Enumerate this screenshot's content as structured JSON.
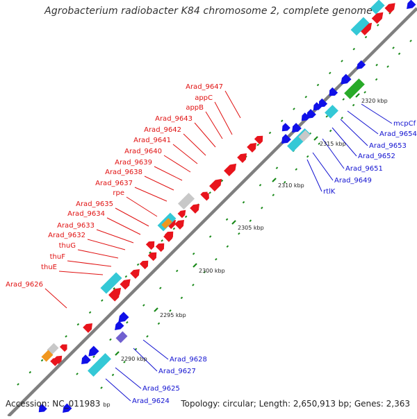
{
  "title": "Agrobacterium radiobacter K84 chromosome 2, complete genome",
  "accession_label": "Accession: NC_011983",
  "accession_unit": "bp",
  "summary": "Topology: circular; Length: 2,650,913 bp; Genes: 2,363",
  "colors": {
    "backbone": "#7f7f7f",
    "forward_gene": "#e8141c",
    "reverse_gene": "#1010e8",
    "rna": "#34c8d6",
    "special_orange": "#f0961e",
    "special_grey": "#c8c8c8",
    "special_green": "#28aa28",
    "special_purple": "#7060d0",
    "forward_label": "#e01010",
    "reverse_label": "#1010d0",
    "tick": "#1a8a1a"
  },
  "ticks": [
    {
      "label": "2290 kbp"
    },
    {
      "label": "2295 kbp"
    },
    {
      "label": "2300 kbp"
    },
    {
      "label": "2305 kbp"
    },
    {
      "label": "2310 kbp"
    },
    {
      "label": "2315 kbp"
    },
    {
      "label": "2320 kbp"
    }
  ],
  "forward_labels": [
    "Arad_9647",
    "appC",
    "appB",
    "Arad_9643",
    "Arad_9642",
    "Arad_9641",
    "Arad_9640",
    "Arad_9639",
    "Arad_9638",
    "Arad_9637",
    "rpe",
    "Arad_9635",
    "Arad_9634",
    "Arad_9633",
    "Arad_9632",
    "thuG",
    "thuF",
    "thuE",
    "Arad_9626"
  ],
  "reverse_labels": [
    "mcpCf",
    "Arad_9654",
    "Arad_9653",
    "Arad_9652",
    "Arad_9651",
    "Arad_9649",
    "rtlK",
    "Arad_9628",
    "Arad_9627",
    "Arad_9625",
    "Arad_9624"
  ]
}
